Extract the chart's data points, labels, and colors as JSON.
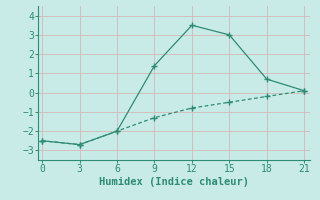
{
  "line1_x": [
    0,
    3,
    6,
    9,
    12,
    15,
    18,
    21
  ],
  "line1_y": [
    -2.5,
    -2.7,
    -2.0,
    1.4,
    3.5,
    3.0,
    0.7,
    0.1
  ],
  "line2_x": [
    0,
    3,
    6,
    9,
    12,
    15,
    18,
    21
  ],
  "line2_y": [
    -2.5,
    -2.7,
    -2.0,
    -1.3,
    -0.8,
    -0.5,
    -0.2,
    0.1
  ],
  "line_color": "#2e8b74",
  "bg_color": "#c8ebe8",
  "grid_color": "#b0d8d5",
  "xlabel": "Humidex (Indice chaleur)",
  "xlabel_fontsize": 7.5,
  "tick_fontsize": 7,
  "xticks": [
    0,
    3,
    6,
    9,
    12,
    15,
    18,
    21
  ],
  "yticks": [
    -3,
    -2,
    -1,
    0,
    1,
    2,
    3,
    4
  ],
  "ylim": [
    -3.5,
    4.5
  ],
  "xlim": [
    -0.3,
    21.5
  ]
}
